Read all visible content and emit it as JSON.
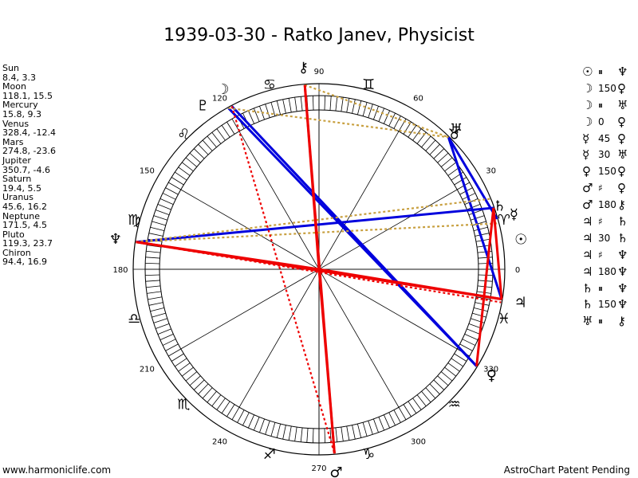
{
  "title": "1939-03-30 - Ratko Janev, Physicist",
  "planets": [
    {
      "name": "Sun",
      "coords": "8.4, 3.3",
      "lon": 8.4,
      "glyph": "☉"
    },
    {
      "name": "Moon",
      "coords": "118.1, 15.5",
      "lon": 118.1,
      "glyph": "☽"
    },
    {
      "name": "Mercury",
      "coords": "15.8, 9.3",
      "lon": 15.8,
      "glyph": "☿"
    },
    {
      "name": "Venus",
      "coords": "328.4, -12.4",
      "lon": 328.4,
      "glyph": "♀"
    },
    {
      "name": "Mars",
      "coords": "274.8, -23.6",
      "lon": 274.8,
      "glyph": "♂"
    },
    {
      "name": "Jupiter",
      "coords": "350.7, -4.6",
      "lon": 350.7,
      "glyph": "♃"
    },
    {
      "name": "Saturn",
      "coords": "19.4, 5.5",
      "lon": 19.4,
      "glyph": "♄"
    },
    {
      "name": "Uranus",
      "coords": "45.6, 16.2",
      "lon": 45.6,
      "glyph": "♅"
    },
    {
      "name": "Neptune",
      "coords": "171.5, 4.5",
      "lon": 171.5,
      "glyph": "♆"
    },
    {
      "name": "Pluto",
      "coords": "119.3, 23.7",
      "lon": 119.3,
      "glyph": "♇"
    },
    {
      "name": "Chiron",
      "coords": "94.4, 16.9",
      "lon": 94.4,
      "glyph": "⚷"
    }
  ],
  "aspects": [
    {
      "p1": "☉",
      "aspect": "⏸",
      "p2": "♆"
    },
    {
      "p1": "☽",
      "aspect": "150",
      "p2": "♀"
    },
    {
      "p1": "☽",
      "aspect": "⏸",
      "p2": "♅"
    },
    {
      "p1": "☽",
      "aspect": "0",
      "p2": "♀"
    },
    {
      "p1": "☿",
      "aspect": "45",
      "p2": "♀"
    },
    {
      "p1": "☿",
      "aspect": "30",
      "p2": "♅"
    },
    {
      "p1": "♀",
      "aspect": "150",
      "p2": "♀"
    },
    {
      "p1": "♂",
      "aspect": "♯",
      "p2": "♀"
    },
    {
      "p1": "♂",
      "aspect": "180",
      "p2": "⚷"
    },
    {
      "p1": "♃",
      "aspect": "♯",
      "p2": "♄"
    },
    {
      "p1": "♃",
      "aspect": "30",
      "p2": "♄"
    },
    {
      "p1": "♃",
      "aspect": "♯",
      "p2": "♆"
    },
    {
      "p1": "♃",
      "aspect": "180",
      "p2": "♆"
    },
    {
      "p1": "♄",
      "aspect": "⏸",
      "p2": "♆"
    },
    {
      "p1": "♄",
      "aspect": "150",
      "p2": "♆"
    },
    {
      "p1": "♅",
      "aspect": "⏸",
      "p2": "⚷"
    }
  ],
  "degree_labels": [
    "0",
    "30",
    "60",
    "90",
    "120",
    "150",
    "180",
    "210",
    "240",
    "270",
    "300",
    "330"
  ],
  "zodiac": [
    "♈",
    "♉",
    "♊",
    "♋",
    "♌",
    "♍",
    "♎",
    "♏",
    "♐",
    "♑",
    "♒",
    "♓"
  ],
  "footer_left": "www.harmoniclife.com",
  "footer_right": "AstroChart Patent Pending",
  "colors": {
    "blue": "#0000dd",
    "red": "#ee0000",
    "gold": "#c8a040"
  }
}
